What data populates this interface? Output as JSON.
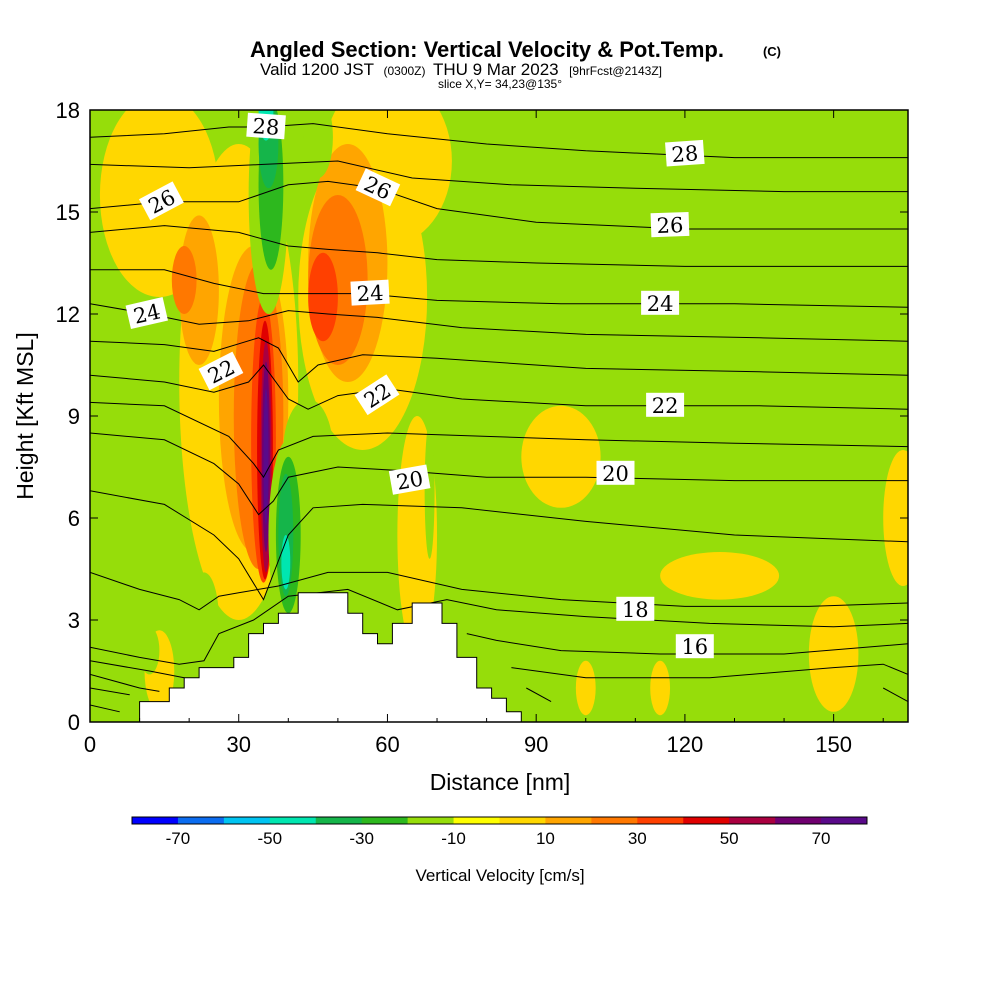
{
  "chart_data": {
    "type": "heatmap",
    "title": "Angled Section: Vertical Velocity & Pot.Temp.",
    "title_mark": "(C)",
    "subtitle_parts": [
      "Valid 1200 JST",
      "(0300Z)",
      "THU 9 Mar 2023",
      "[9hrFcst@2143Z]"
    ],
    "slice_label": "slice X,Y= 34,23@135°",
    "xlabel": "Distance [nm]",
    "ylabel": "Height [Kft MSL]",
    "xlim": [
      0,
      165
    ],
    "ylim": [
      0,
      18
    ],
    "x_ticks": [
      0,
      30,
      60,
      90,
      120,
      150
    ],
    "y_ticks": [
      0,
      3,
      6,
      9,
      12,
      15,
      18
    ],
    "colorbar": {
      "label": "Vertical Velocity [cm/s]",
      "tick_labels": [
        -70,
        -50,
        -30,
        -10,
        10,
        30,
        50,
        70
      ],
      "bins": [
        -80,
        -70,
        -60,
        -50,
        -40,
        -30,
        -20,
        -10,
        0,
        10,
        20,
        30,
        40,
        50,
        60,
        70,
        80
      ],
      "colors": [
        "#0000ff",
        "#0b6cf0",
        "#00c4f2",
        "#00e6b0",
        "#15b54a",
        "#2db81e",
        "#96dd0a",
        "#ffff00",
        "#ffd700",
        "#ffa500",
        "#ff7800",
        "#ff4000",
        "#e00000",
        "#aa0040",
        "#700070",
        "#5a0a8a"
      ]
    },
    "background_color": "#96dd0a",
    "terrain": [
      [
        10,
        0
      ],
      [
        10,
        0.6
      ],
      [
        16,
        0.6
      ],
      [
        16,
        1.0
      ],
      [
        19,
        1.0
      ],
      [
        19,
        1.3
      ],
      [
        22,
        1.3
      ],
      [
        22,
        1.6
      ],
      [
        29,
        1.6
      ],
      [
        29,
        1.9
      ],
      [
        32,
        1.9
      ],
      [
        32,
        2.6
      ],
      [
        35,
        2.6
      ],
      [
        35,
        2.9
      ],
      [
        38,
        2.9
      ],
      [
        38,
        3.2
      ],
      [
        42,
        3.2
      ],
      [
        42,
        3.8
      ],
      [
        52,
        3.8
      ],
      [
        52,
        3.2
      ],
      [
        55,
        3.2
      ],
      [
        55,
        2.6
      ],
      [
        58,
        2.6
      ],
      [
        58,
        2.3
      ],
      [
        61,
        2.3
      ],
      [
        61,
        2.9
      ],
      [
        65,
        2.9
      ],
      [
        65,
        3.5
      ],
      [
        71,
        3.5
      ],
      [
        71,
        2.9
      ],
      [
        74,
        2.9
      ],
      [
        74,
        1.9
      ],
      [
        78,
        1.9
      ],
      [
        78,
        1.0
      ],
      [
        81,
        1.0
      ],
      [
        81,
        0.7
      ],
      [
        84,
        0.7
      ],
      [
        84,
        0.3
      ],
      [
        87,
        0.3
      ],
      [
        87,
        0
      ]
    ],
    "velocity_regions": [
      {
        "w": 5,
        "shape": "ellipse",
        "cx": 14,
        "cy": 15.5,
        "rx": 12,
        "ry": 3
      },
      {
        "w": 5,
        "shape": "ellipse",
        "cx": 30,
        "cy": 10,
        "rx": 12,
        "ry": 7
      },
      {
        "w": 5,
        "shape": "ellipse",
        "cx": 60,
        "cy": 16.5,
        "rx": 13,
        "ry": 2.5
      },
      {
        "w": 5,
        "shape": "ellipse",
        "cx": 55,
        "cy": 12.5,
        "rx": 13,
        "ry": 4.5
      },
      {
        "w": 5,
        "shape": "ellipse",
        "cx": 66,
        "cy": 5.5,
        "rx": 4,
        "ry": 3.5
      },
      {
        "w": 5,
        "shape": "ellipse",
        "cx": 95,
        "cy": 7.8,
        "rx": 8,
        "ry": 1.5
      },
      {
        "w": 5,
        "shape": "ellipse",
        "cx": 127,
        "cy": 4.3,
        "rx": 12,
        "ry": 0.7
      },
      {
        "w": 5,
        "shape": "ellipse",
        "cx": 164,
        "cy": 6,
        "rx": 4,
        "ry": 2
      },
      {
        "w": 5,
        "shape": "ellipse",
        "cx": 150,
        "cy": 2,
        "rx": 5,
        "ry": 1.7
      },
      {
        "w": 5,
        "shape": "ellipse",
        "cx": 14,
        "cy": 1.5,
        "rx": 3,
        "ry": 1.2
      },
      {
        "w": 5,
        "shape": "ellipse",
        "cx": 100,
        "cy": 1,
        "rx": 2,
        "ry": 0.8
      },
      {
        "w": 5,
        "shape": "ellipse",
        "cx": 63,
        "cy": 1.0,
        "rx": 2,
        "ry": 0.9
      },
      {
        "w": 5,
        "shape": "ellipse",
        "cx": 115,
        "cy": 1,
        "rx": 2,
        "ry": 0.8
      },
      {
        "w": 15,
        "shape": "ellipse",
        "cx": 22,
        "cy": 12.7,
        "rx": 4,
        "ry": 2.2
      },
      {
        "w": 15,
        "shape": "ellipse",
        "cx": 52,
        "cy": 13.5,
        "rx": 8,
        "ry": 3.5
      },
      {
        "w": 15,
        "shape": "ellipse",
        "cx": 33,
        "cy": 9.5,
        "rx": 7,
        "ry": 4.5
      },
      {
        "w": 25,
        "shape": "ellipse",
        "cx": 19,
        "cy": 13,
        "rx": 2.5,
        "ry": 1
      },
      {
        "w": 25,
        "shape": "ellipse",
        "cx": 50,
        "cy": 13,
        "rx": 6,
        "ry": 2.5
      },
      {
        "w": 35,
        "shape": "ellipse",
        "cx": 47,
        "cy": 12.5,
        "rx": 3,
        "ry": 1.3
      },
      {
        "w": 25,
        "shape": "ellipse",
        "cx": 34,
        "cy": 9.0,
        "rx": 5,
        "ry": 4.5
      },
      {
        "w": 35,
        "shape": "ellipse",
        "cx": 35,
        "cy": 8.3,
        "rx": 2.5,
        "ry": 4.2
      },
      {
        "w": 45,
        "shape": "ellipse",
        "cx": 35.3,
        "cy": 8.0,
        "rx": 1.6,
        "ry": 3.8
      },
      {
        "w": 55,
        "shape": "ellipse",
        "cx": 35.5,
        "cy": 7.8,
        "rx": 1.1,
        "ry": 3.4
      },
      {
        "w": 65,
        "shape": "ellipse",
        "cx": 35.5,
        "cy": 7.8,
        "rx": 0.8,
        "ry": 2.8
      },
      {
        "w": 75,
        "shape": "ellipse",
        "cx": 35.5,
        "cy": 7.8,
        "rx": 0.5,
        "ry": 2.0
      },
      {
        "w": -15,
        "shape": "ellipse",
        "cx": 46,
        "cy": 17.2,
        "rx": 3,
        "ry": 1.2
      },
      {
        "w": -15,
        "shape": "ellipse",
        "cx": 36,
        "cy": 15.5,
        "rx": 4,
        "ry": 3.5
      },
      {
        "w": -25,
        "shape": "ellipse",
        "cx": 36.5,
        "cy": 15.8,
        "rx": 2.5,
        "ry": 2.5
      },
      {
        "w": -35,
        "shape": "ellipse",
        "cx": 36,
        "cy": 17,
        "rx": 2,
        "ry": 1.3
      },
      {
        "w": -45,
        "shape": "ellipse",
        "cx": 35.5,
        "cy": 18,
        "rx": 1.5,
        "ry": 0.9
      },
      {
        "w": -15,
        "shape": "ellipse",
        "cx": 44,
        "cy": 8,
        "rx": 5,
        "ry": 1.5
      },
      {
        "w": -15,
        "shape": "ellipse",
        "cx": 40,
        "cy": 5.5,
        "rx": 4,
        "ry": 2.8
      },
      {
        "w": -25,
        "shape": "ellipse",
        "cx": 40,
        "cy": 5.5,
        "rx": 2.5,
        "ry": 2.3
      },
      {
        "w": -35,
        "shape": "ellipse",
        "cx": 39.5,
        "cy": 5.5,
        "rx": 1.5,
        "ry": 1.8
      },
      {
        "w": -45,
        "shape": "ellipse",
        "cx": 39.5,
        "cy": 4.7,
        "rx": 0.9,
        "ry": 0.8
      },
      {
        "w": -15,
        "shape": "ellipse",
        "cx": 68.5,
        "cy": 6.8,
        "rx": 1,
        "ry": 2
      },
      {
        "w": -15,
        "shape": "ellipse",
        "cx": 23,
        "cy": 3,
        "rx": 3,
        "ry": 1.4
      },
      {
        "w": -15,
        "shape": "ellipse",
        "cx": 12,
        "cy": 2.1,
        "rx": 2,
        "ry": 0.7
      }
    ],
    "contour_labels": [
      {
        "text": "28",
        "x": 35.5,
        "y": 17.5,
        "rot": 4
      },
      {
        "text": "28",
        "x": 120,
        "y": 16.7,
        "rot": -4
      },
      {
        "text": "26",
        "x": 14.5,
        "y": 15.3,
        "rot": -28
      },
      {
        "text": "26",
        "x": 58,
        "y": 15.7,
        "rot": 25
      },
      {
        "text": "26",
        "x": 117,
        "y": 14.6,
        "rot": -2
      },
      {
        "text": "24",
        "x": 11.5,
        "y": 12.0,
        "rot": -13
      },
      {
        "text": "24",
        "x": 56.5,
        "y": 12.6,
        "rot": -3
      },
      {
        "text": "24",
        "x": 115,
        "y": 12.3,
        "rot": 0
      },
      {
        "text": "22",
        "x": 26.5,
        "y": 10.3,
        "rot": -27
      },
      {
        "text": "22",
        "x": 58,
        "y": 9.6,
        "rot": -33
      },
      {
        "text": "22",
        "x": 116,
        "y": 9.3,
        "rot": 0
      },
      {
        "text": "20",
        "x": 64.5,
        "y": 7.1,
        "rot": -10
      },
      {
        "text": "20",
        "x": 106,
        "y": 7.3,
        "rot": 0
      },
      {
        "text": "18",
        "x": 110,
        "y": 3.3,
        "rot": 0
      },
      {
        "text": "16",
        "x": 122,
        "y": 2.2,
        "rot": 0
      }
    ],
    "contour_lines": [
      [
        [
          0,
          17.2
        ],
        [
          15,
          17.3
        ],
        [
          28,
          17.5
        ],
        [
          35,
          17.5
        ],
        [
          45,
          17.6
        ],
        [
          60,
          17.3
        ],
        [
          80,
          17.0
        ],
        [
          100,
          16.8
        ],
        [
          130,
          16.6
        ],
        [
          165,
          16.6
        ]
      ],
      [
        [
          0,
          16.4
        ],
        [
          20,
          16.3
        ],
        [
          35,
          16.4
        ],
        [
          50,
          16.5
        ],
        [
          65,
          16.0
        ],
        [
          85,
          15.8
        ],
        [
          110,
          15.7
        ],
        [
          140,
          15.6
        ],
        [
          165,
          15.6
        ]
      ],
      [
        [
          0,
          15.1
        ],
        [
          15,
          15.3
        ],
        [
          30,
          15.3
        ],
        [
          40,
          15.8
        ],
        [
          48,
          15.9
        ],
        [
          58,
          15.7
        ],
        [
          70,
          15.1
        ],
        [
          90,
          14.7
        ],
        [
          120,
          14.5
        ],
        [
          165,
          14.5
        ]
      ],
      [
        [
          0,
          14.4
        ],
        [
          15,
          14.6
        ],
        [
          30,
          14.4
        ],
        [
          40,
          14.0
        ],
        [
          48,
          13.9
        ],
        [
          58,
          13.8
        ],
        [
          70,
          13.6
        ],
        [
          90,
          13.5
        ],
        [
          120,
          13.4
        ],
        [
          165,
          13.4
        ]
      ],
      [
        [
          0,
          13.3
        ],
        [
          15,
          13.3
        ],
        [
          25,
          12.9
        ],
        [
          35,
          12.6
        ],
        [
          45,
          12.6
        ],
        [
          55,
          12.6
        ],
        [
          70,
          12.4
        ],
        [
          95,
          12.3
        ],
        [
          130,
          12.3
        ],
        [
          165,
          12.2
        ]
      ],
      [
        [
          0,
          12.3
        ],
        [
          12,
          12.0
        ],
        [
          22,
          11.7
        ],
        [
          32,
          11.8
        ],
        [
          40,
          12.1
        ],
        [
          48,
          12.0
        ],
        [
          58,
          11.9
        ],
        [
          75,
          11.6
        ],
        [
          100,
          11.4
        ],
        [
          135,
          11.3
        ],
        [
          165,
          11.2
        ]
      ],
      [
        [
          0,
          11.2
        ],
        [
          15,
          11.1
        ],
        [
          25,
          10.9
        ],
        [
          34,
          11.3
        ],
        [
          38,
          11.0
        ],
        [
          42,
          10.0
        ],
        [
          46,
          10.5
        ],
        [
          55,
          10.8
        ],
        [
          70,
          10.7
        ],
        [
          100,
          10.4
        ],
        [
          135,
          10.3
        ],
        [
          165,
          10.2
        ]
      ],
      [
        [
          0,
          10.2
        ],
        [
          15,
          10.0
        ],
        [
          25,
          9.7
        ],
        [
          32,
          10.0
        ],
        [
          35,
          10.5
        ],
        [
          40,
          9.5
        ],
        [
          44,
          9.2
        ],
        [
          50,
          9.6
        ],
        [
          60,
          9.8
        ],
        [
          75,
          9.5
        ],
        [
          100,
          9.3
        ],
        [
          135,
          9.3
        ],
        [
          165,
          9.2
        ]
      ],
      [
        [
          0,
          9.4
        ],
        [
          15,
          9.3
        ],
        [
          28,
          8.4
        ],
        [
          33,
          7.6
        ],
        [
          35,
          7.2
        ],
        [
          38,
          8.0
        ],
        [
          45,
          8.4
        ],
        [
          60,
          8.5
        ],
        [
          80,
          8.4
        ],
        [
          100,
          8.3
        ],
        [
          130,
          8.2
        ],
        [
          165,
          8.1
        ]
      ],
      [
        [
          0,
          8.5
        ],
        [
          15,
          8.3
        ],
        [
          25,
          7.6
        ],
        [
          30,
          7.0
        ],
        [
          34,
          6.1
        ],
        [
          37,
          6.5
        ],
        [
          40,
          7.2
        ],
        [
          50,
          7.5
        ],
        [
          62,
          7.4
        ],
        [
          80,
          7.2
        ],
        [
          100,
          7.2
        ],
        [
          130,
          7.1
        ],
        [
          165,
          7.1
        ]
      ],
      [
        [
          0,
          6.8
        ],
        [
          15,
          6.4
        ],
        [
          25,
          5.5
        ],
        [
          30,
          4.8
        ],
        [
          35,
          3.6
        ],
        [
          40,
          5.5
        ],
        [
          45,
          6.3
        ],
        [
          55,
          6.4
        ],
        [
          75,
          6.3
        ],
        [
          100,
          5.9
        ],
        [
          130,
          5.5
        ],
        [
          165,
          5.3
        ]
      ],
      [
        [
          0,
          4.4
        ],
        [
          10,
          3.9
        ],
        [
          18,
          3.6
        ],
        [
          22,
          3.3
        ],
        [
          26,
          3.7
        ],
        [
          30,
          3.8
        ],
        [
          38,
          4.0
        ],
        [
          48,
          4.4
        ],
        [
          60,
          4.4
        ],
        [
          75,
          3.9
        ],
        [
          95,
          3.6
        ],
        [
          120,
          3.4
        ],
        [
          145,
          3.4
        ],
        [
          165,
          3.5
        ]
      ],
      [
        [
          0,
          2.2
        ],
        [
          10,
          1.9
        ],
        [
          18,
          1.7
        ],
        [
          23,
          1.8
        ],
        [
          26,
          2.6
        ],
        [
          33,
          3.0
        ],
        [
          40,
          3.7
        ],
        [
          52,
          3.9
        ],
        [
          62,
          3.3
        ],
        [
          72,
          3.6
        ],
        [
          82,
          3.3
        ],
        [
          100,
          3.1
        ],
        [
          125,
          2.9
        ],
        [
          150,
          2.8
        ],
        [
          165,
          2.9
        ]
      ],
      [
        [
          0,
          1.8
        ],
        [
          12,
          1.5
        ],
        [
          19,
          1.3
        ]
      ],
      [
        [
          76,
          2.6
        ],
        [
          82,
          2.4
        ],
        [
          95,
          2.1
        ],
        [
          115,
          2.0
        ],
        [
          140,
          2.0
        ],
        [
          165,
          2.3
        ]
      ],
      [
        [
          0,
          1.4
        ],
        [
          10,
          1.0
        ],
        [
          14,
          0.9
        ]
      ],
      [
        [
          85,
          1.6
        ],
        [
          100,
          1.3
        ],
        [
          125,
          1.3
        ],
        [
          150,
          1.6
        ],
        [
          160,
          1.7
        ],
        [
          165,
          1.4
        ]
      ],
      [
        [
          0,
          1.0
        ],
        [
          8,
          0.8
        ]
      ],
      [
        [
          0,
          0.5
        ],
        [
          6,
          0.3
        ]
      ],
      [
        [
          88,
          1.0
        ],
        [
          93,
          0.6
        ]
      ],
      [
        [
          160,
          1.0
        ],
        [
          165,
          0.6
        ]
      ]
    ]
  }
}
